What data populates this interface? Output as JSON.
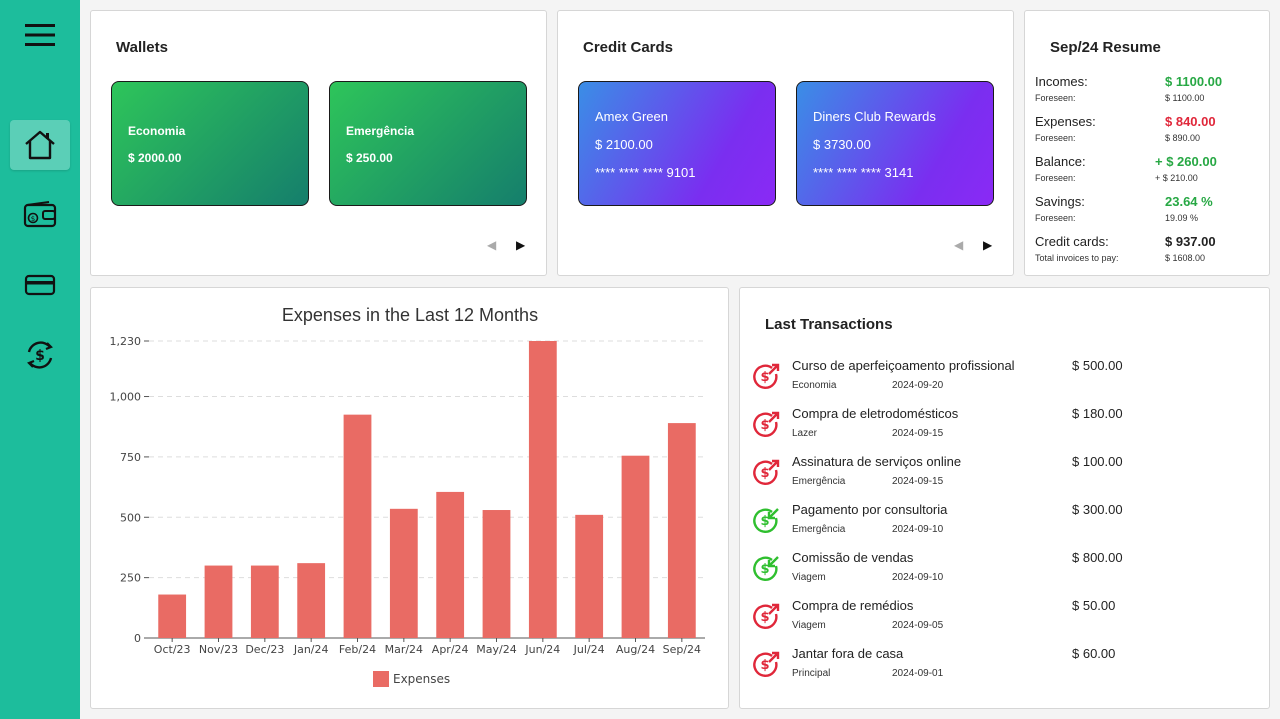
{
  "colors": {
    "sidebar": "#1dbd9c",
    "income": "#27a844",
    "expense": "#e0273a",
    "bar": "#e96b64",
    "wallet_gradient": [
      "#2ec55a",
      "#157e6c"
    ],
    "card_gradient": [
      "#3a8ee6",
      "#8a2af5"
    ]
  },
  "sidebar": {
    "items": [
      {
        "icon": "menu-icon"
      },
      {
        "icon": "home-icon",
        "active": true
      },
      {
        "icon": "wallet-icon"
      },
      {
        "icon": "credit-card-icon"
      },
      {
        "icon": "transactions-icon"
      }
    ]
  },
  "wallets": {
    "title": "Wallets",
    "items": [
      {
        "name": "Economia",
        "amount": "$ 2000.00"
      },
      {
        "name": "Emergência",
        "amount": "$ 250.00"
      }
    ],
    "prev": "◀",
    "next": "▶"
  },
  "credit_cards": {
    "title": "Credit Cards",
    "items": [
      {
        "name": "Amex Green",
        "amount": "$ 2100.00",
        "number": "**** **** **** 9101"
      },
      {
        "name": "Diners Club Rewards",
        "amount": "$ 3730.00",
        "number": "**** **** **** 3141"
      }
    ],
    "prev": "◀",
    "next": "▶"
  },
  "resume": {
    "title": "Sep/24 Resume",
    "rows": [
      {
        "label": "Incomes:",
        "value": "$ 1100.00",
        "sub_label": "Foreseen:",
        "sub_value": "$ 1100.00",
        "tone": "green"
      },
      {
        "label": "Expenses:",
        "value": "$ 840.00",
        "sub_label": "Foreseen:",
        "sub_value": "$ 890.00",
        "tone": "red"
      },
      {
        "label": "Balance:",
        "value": "+ $ 260.00",
        "sub_label": "Foreseen:",
        "sub_value": "+ $ 210.00",
        "tone": "green"
      },
      {
        "label": "Savings:",
        "value": "23.64 %",
        "sub_label": "Foreseen:",
        "sub_value": "19.09 %",
        "tone": "green"
      },
      {
        "label": "Credit cards:",
        "value": "$ 937.00",
        "sub_label": "Total invoices to pay:",
        "sub_value": "$ 1608.00",
        "tone": "dark"
      }
    ]
  },
  "chart_data": {
    "type": "bar",
    "title": "Expenses in the Last 12 Months",
    "categories": [
      "Oct/23",
      "Nov/23",
      "Dec/23",
      "Jan/24",
      "Feb/24",
      "Mar/24",
      "Apr/24",
      "May/24",
      "Jun/24",
      "Jul/24",
      "Aug/24",
      "Sep/24"
    ],
    "series": [
      {
        "name": "Expenses",
        "values": [
          180,
          300,
          300,
          310,
          925,
          535,
          605,
          530,
          1230,
          510,
          755,
          890
        ]
      }
    ],
    "yticks": [
      0,
      250,
      500,
      750,
      1000,
      1230
    ],
    "ytick_labels": [
      "0",
      "250",
      "500",
      "750",
      "1,000",
      "1,230"
    ],
    "ylim": [
      0,
      1230
    ],
    "xlabel": "",
    "ylabel": "",
    "grid": true,
    "legend_position": "bottom"
  },
  "transactions": {
    "title": "Last Transactions",
    "items": [
      {
        "description": "Curso de aperfeiçoamento profissional",
        "wallet": "Economia",
        "date": "2024-09-20",
        "value": "$ 500.00",
        "type": "expense"
      },
      {
        "description": "Compra de eletrodomésticos",
        "wallet": "Lazer",
        "date": "2024-09-15",
        "value": "$ 180.00",
        "type": "expense"
      },
      {
        "description": "Assinatura de serviços online",
        "wallet": "Emergência",
        "date": "2024-09-15",
        "value": "$ 100.00",
        "type": "expense"
      },
      {
        "description": "Pagamento por consultoria",
        "wallet": "Emergência",
        "date": "2024-09-10",
        "value": "$ 300.00",
        "type": "income"
      },
      {
        "description": "Comissão de vendas",
        "wallet": "Viagem",
        "date": "2024-09-10",
        "value": "$ 800.00",
        "type": "income"
      },
      {
        "description": "Compra de remédios",
        "wallet": "Viagem",
        "date": "2024-09-05",
        "value": "$ 50.00",
        "type": "expense"
      },
      {
        "description": "Jantar fora de casa",
        "wallet": "Principal",
        "date": "2024-09-01",
        "value": "$ 60.00",
        "type": "expense"
      }
    ]
  }
}
